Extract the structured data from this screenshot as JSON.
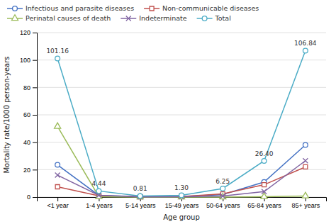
{
  "chart_data": {
    "type": "line",
    "x_label": "Age group",
    "y_label": "Mortality rate/1000 person-years",
    "categories": [
      "<1 year",
      "1-4 years",
      "5-14 years",
      "15-49 years",
      "50-64 years",
      "65-84 years",
      "85+ years"
    ],
    "series": [
      {
        "name": "Infectious and parasite diseases",
        "color": "#4472C4",
        "marker": "circle",
        "values": [
          23.5,
          1.2,
          0.35,
          0.4,
          1.8,
          11.0,
          38.0
        ]
      },
      {
        "name": "Non-communicable diseases",
        "color": "#C0504D",
        "marker": "square",
        "values": [
          7.5,
          0.9,
          0.2,
          0.4,
          2.3,
          9.0,
          22.0
        ]
      },
      {
        "name": "Perinatal causes of death",
        "color": "#9BBB59",
        "marker": "triangle",
        "values": [
          51.5,
          0.3,
          0.0,
          0.0,
          0.0,
          0.3,
          0.8
        ]
      },
      {
        "name": "Indeterminate",
        "color": "#8064A2",
        "marker": "cross",
        "values": [
          16.0,
          1.3,
          0.15,
          0.25,
          0.8,
          4.0,
          26.5
        ]
      },
      {
        "name": "Total",
        "color": "#4BACC6",
        "marker": "circle",
        "values": [
          101.16,
          4.44,
          0.81,
          1.3,
          6.25,
          26.4,
          106.84
        ],
        "data_labels": true,
        "value_labels": [
          "101.16",
          "4.44",
          "0.81",
          "1.30",
          "6.25",
          "26.40",
          "106.84"
        ]
      }
    ],
    "ylim": [
      0,
      120
    ],
    "yticks": [
      0,
      20,
      40,
      60,
      80,
      100,
      120
    ],
    "grid": true,
    "legend": "top"
  }
}
